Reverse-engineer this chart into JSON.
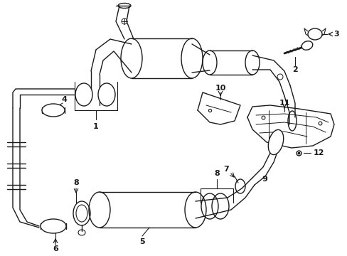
{
  "background_color": "#ffffff",
  "line_color": "#1a1a1a",
  "lw": 1.0,
  "figsize": [
    4.89,
    3.6
  ],
  "dpi": 100
}
